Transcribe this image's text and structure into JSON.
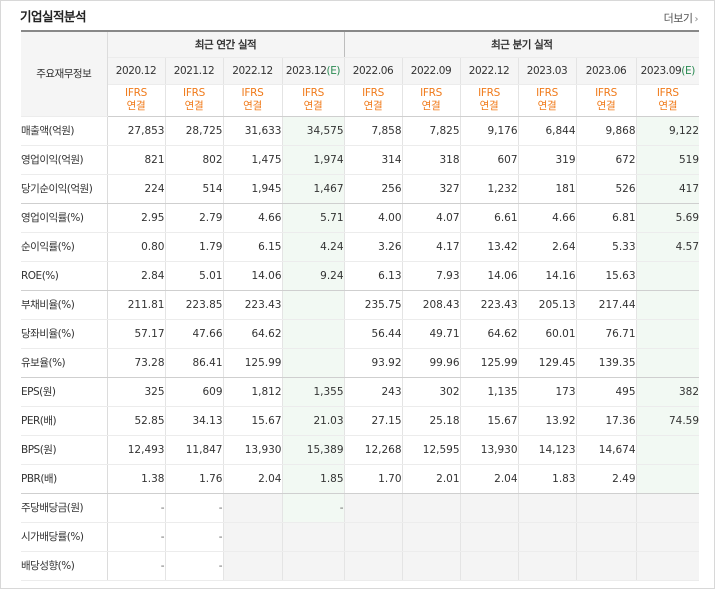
{
  "header": {
    "title": "기업실적분석",
    "more_label": "더보기"
  },
  "table": {
    "corner_label": "주요재무정보",
    "annual_label": "최근 연간 실적",
    "quarter_label": "최근 분기 실적",
    "columns": [
      {
        "period": "2020.12",
        "est": "",
        "std1": "IFRS",
        "std2": "연결"
      },
      {
        "period": "2021.12",
        "est": "",
        "std1": "IFRS",
        "std2": "연결"
      },
      {
        "period": "2022.12",
        "est": "",
        "std1": "IFRS",
        "std2": "연결"
      },
      {
        "period": "2023.12",
        "est": "(E)",
        "std1": "IFRS",
        "std2": "연결"
      },
      {
        "period": "2022.06",
        "est": "",
        "std1": "IFRS",
        "std2": "연결"
      },
      {
        "period": "2022.09",
        "est": "",
        "std1": "IFRS",
        "std2": "연결"
      },
      {
        "period": "2022.12",
        "est": "",
        "std1": "IFRS",
        "std2": "연결"
      },
      {
        "period": "2023.03",
        "est": "",
        "std1": "IFRS",
        "std2": "연결"
      },
      {
        "period": "2023.06",
        "est": "",
        "std1": "IFRS",
        "std2": "연결"
      },
      {
        "period": "2023.09",
        "est": "(E)",
        "std1": "IFRS",
        "std2": "연결"
      }
    ],
    "rows": [
      {
        "label": "매출액(억원)",
        "values": [
          "27,853",
          "28,725",
          "31,633",
          "34,575",
          "7,858",
          "7,825",
          "9,176",
          "6,844",
          "9,868",
          "9,122"
        ]
      },
      {
        "label": "영업이익(억원)",
        "values": [
          "821",
          "802",
          "1,475",
          "1,974",
          "314",
          "318",
          "607",
          "319",
          "672",
          "519"
        ]
      },
      {
        "label": "당기순이익(억원)",
        "values": [
          "224",
          "514",
          "1,945",
          "1,467",
          "256",
          "327",
          "1,232",
          "181",
          "526",
          "417"
        ]
      },
      {
        "label": "영업이익률(%)",
        "values": [
          "2.95",
          "2.79",
          "4.66",
          "5.71",
          "4.00",
          "4.07",
          "6.61",
          "4.66",
          "6.81",
          "5.69"
        ]
      },
      {
        "label": "순이익률(%)",
        "values": [
          "0.80",
          "1.79",
          "6.15",
          "4.24",
          "3.26",
          "4.17",
          "13.42",
          "2.64",
          "5.33",
          "4.57"
        ]
      },
      {
        "label": "ROE(%)",
        "values": [
          "2.84",
          "5.01",
          "14.06",
          "9.24",
          "6.13",
          "7.93",
          "14.06",
          "14.16",
          "15.63",
          ""
        ]
      },
      {
        "label": "부채비율(%)",
        "values": [
          "211.81",
          "223.85",
          "223.43",
          "",
          "235.75",
          "208.43",
          "223.43",
          "205.13",
          "217.44",
          ""
        ]
      },
      {
        "label": "당좌비율(%)",
        "values": [
          "57.17",
          "47.66",
          "64.62",
          "",
          "56.44",
          "49.71",
          "64.62",
          "60.01",
          "76.71",
          ""
        ]
      },
      {
        "label": "유보율(%)",
        "values": [
          "73.28",
          "86.41",
          "125.99",
          "",
          "93.92",
          "99.96",
          "125.99",
          "129.45",
          "139.35",
          ""
        ]
      },
      {
        "label": "EPS(원)",
        "values": [
          "325",
          "609",
          "1,812",
          "1,355",
          "243",
          "302",
          "1,135",
          "173",
          "495",
          "382"
        ]
      },
      {
        "label": "PER(배)",
        "values": [
          "52.85",
          "34.13",
          "15.67",
          "21.03",
          "27.15",
          "25.18",
          "15.67",
          "13.92",
          "17.36",
          "74.59"
        ]
      },
      {
        "label": "BPS(원)",
        "values": [
          "12,493",
          "11,847",
          "13,930",
          "15,389",
          "12,268",
          "12,595",
          "13,930",
          "14,123",
          "14,674",
          ""
        ]
      },
      {
        "label": "PBR(배)",
        "values": [
          "1.38",
          "1.76",
          "2.04",
          "1.85",
          "1.70",
          "2.01",
          "2.04",
          "1.83",
          "2.49",
          ""
        ]
      },
      {
        "label": "주당배당금(원)",
        "values": [
          "-",
          "-",
          "",
          "-",
          "",
          "",
          "",
          "",
          "",
          ""
        ]
      },
      {
        "label": "시가배당률(%)",
        "values": [
          "-",
          "-",
          "",
          "",
          "",
          "",
          "",
          "",
          "",
          ""
        ]
      },
      {
        "label": "배당성향(%)",
        "values": [
          "-",
          "-",
          "",
          "",
          "",
          "",
          "",
          "",
          "",
          ""
        ]
      }
    ]
  },
  "colors": {
    "std_text": "#f07a1a",
    "estimate_text": "#2a8a52",
    "estimate_bg": "#f2f9f3",
    "empty_bg": "#f4f4f4"
  }
}
